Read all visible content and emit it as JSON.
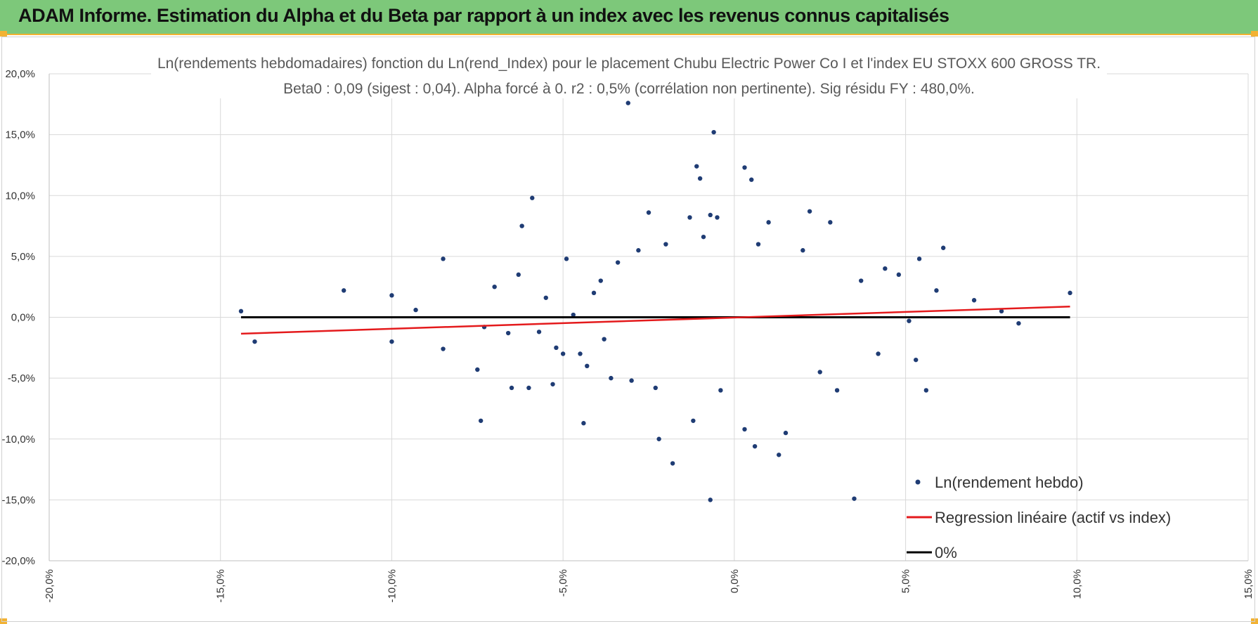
{
  "header": {
    "title": "ADAM Informe. Estimation du Alpha et du Beta par rapport à un index avec les revenus connus capitalisés"
  },
  "colors": {
    "banner": "#7dc87a",
    "accent": "#f2b233",
    "points": "#1f3c74",
    "regression": "#e41a1c",
    "zero_line": "#000000"
  },
  "chart_data": {
    "type": "scatter",
    "title": "Ln(rendements hebdomadaires) fonction du Ln(rend_Index) pour le placement Chubu Electric Power Co I et l'index EU STOXX 600 GROSS TR.",
    "subtitle": "Beta0 : 0,09  (sigest : 0,04). Alpha forcé à 0. r2 : 0,5% (corrélation non pertinente). Sig résidu FY : 480,0%.",
    "xlabel": "",
    "ylabel": "",
    "xlim": [
      -0.2,
      0.15
    ],
    "ylim": [
      -0.2,
      0.2
    ],
    "x_ticks": [
      -0.2,
      -0.15,
      -0.1,
      -0.05,
      0.0,
      0.05,
      0.1,
      0.15
    ],
    "x_tick_labels": [
      "-20,0%",
      "-15,0%",
      "-10,0%",
      "-5,0%",
      "0,0%",
      "5,0%",
      "10,0%",
      "15,0%"
    ],
    "y_ticks": [
      0.2,
      0.15,
      0.1,
      0.05,
      0.0,
      -0.05,
      -0.1,
      -0.15,
      -0.2
    ],
    "y_tick_labels": [
      "20,0%",
      "15,0%",
      "10,0%",
      "5,0%",
      "0,0%",
      "-5,0%",
      "-10,0%",
      "-15,0%",
      "-20,0%"
    ],
    "grid": true,
    "legend_position": "bottom-right",
    "legend": [
      {
        "label": "Ln(rendement hebdo)",
        "kind": "marker"
      },
      {
        "label": "Regression linéaire (actif vs index)",
        "kind": "line"
      },
      {
        "label": "0%",
        "kind": "line"
      }
    ],
    "series": [
      {
        "name": "Ln(rendement hebdo)",
        "kind": "scatter",
        "points": [
          [
            -0.144,
            0.005
          ],
          [
            -0.14,
            -0.02
          ],
          [
            -0.114,
            0.022
          ],
          [
            -0.1,
            0.018
          ],
          [
            -0.1,
            -0.02
          ],
          [
            -0.093,
            0.006
          ],
          [
            -0.085,
            0.048
          ],
          [
            -0.085,
            -0.026
          ],
          [
            -0.075,
            -0.043
          ],
          [
            -0.074,
            -0.085
          ],
          [
            -0.073,
            -0.008
          ],
          [
            -0.07,
            0.025
          ],
          [
            -0.066,
            -0.013
          ],
          [
            -0.065,
            -0.058
          ],
          [
            -0.063,
            0.035
          ],
          [
            -0.062,
            0.075
          ],
          [
            -0.06,
            -0.058
          ],
          [
            -0.059,
            0.098
          ],
          [
            -0.057,
            -0.012
          ],
          [
            -0.055,
            0.016
          ],
          [
            -0.053,
            -0.055
          ],
          [
            -0.052,
            -0.025
          ],
          [
            -0.05,
            -0.03
          ],
          [
            -0.049,
            0.048
          ],
          [
            -0.047,
            0.002
          ],
          [
            -0.045,
            -0.03
          ],
          [
            -0.044,
            -0.087
          ],
          [
            -0.043,
            -0.04
          ],
          [
            -0.041,
            0.02
          ],
          [
            -0.039,
            0.03
          ],
          [
            -0.038,
            -0.018
          ],
          [
            -0.036,
            -0.05
          ],
          [
            -0.034,
            0.045
          ],
          [
            -0.031,
            0.176
          ],
          [
            -0.03,
            -0.052
          ],
          [
            -0.028,
            0.055
          ],
          [
            -0.025,
            0.086
          ],
          [
            -0.023,
            -0.058
          ],
          [
            -0.022,
            -0.1
          ],
          [
            -0.02,
            0.06
          ],
          [
            -0.018,
            -0.12
          ],
          [
            -0.013,
            0.082
          ],
          [
            -0.012,
            -0.085
          ],
          [
            -0.011,
            0.124
          ],
          [
            -0.01,
            0.114
          ],
          [
            -0.009,
            0.066
          ],
          [
            -0.007,
            -0.15
          ],
          [
            -0.007,
            0.084
          ],
          [
            -0.006,
            0.152
          ],
          [
            -0.005,
            0.082
          ],
          [
            -0.004,
            -0.06
          ],
          [
            0.003,
            0.123
          ],
          [
            0.005,
            0.113
          ],
          [
            0.003,
            -0.092
          ],
          [
            0.006,
            -0.106
          ],
          [
            0.007,
            0.06
          ],
          [
            0.01,
            0.078
          ],
          [
            0.013,
            -0.113
          ],
          [
            0.015,
            -0.095
          ],
          [
            0.02,
            0.055
          ],
          [
            0.022,
            0.087
          ],
          [
            0.025,
            -0.045
          ],
          [
            0.028,
            0.078
          ],
          [
            0.03,
            -0.06
          ],
          [
            0.035,
            -0.149
          ],
          [
            0.037,
            0.03
          ],
          [
            0.042,
            -0.03
          ],
          [
            0.044,
            0.04
          ],
          [
            0.048,
            0.035
          ],
          [
            0.051,
            -0.003
          ],
          [
            0.053,
            -0.035
          ],
          [
            0.054,
            0.048
          ],
          [
            0.056,
            -0.06
          ],
          [
            0.059,
            0.022
          ],
          [
            0.061,
            0.057
          ],
          [
            0.07,
            0.014
          ],
          [
            0.078,
            0.005
          ],
          [
            0.083,
            -0.005
          ],
          [
            0.098,
            0.02
          ]
        ]
      },
      {
        "name": "Regression linéaire (actif vs index)",
        "kind": "line",
        "points": [
          [
            -0.144,
            -0.0135
          ],
          [
            0.098,
            0.0088
          ]
        ]
      },
      {
        "name": "0%",
        "kind": "line",
        "points": [
          [
            -0.144,
            0.0
          ],
          [
            0.098,
            0.0
          ]
        ]
      }
    ]
  }
}
